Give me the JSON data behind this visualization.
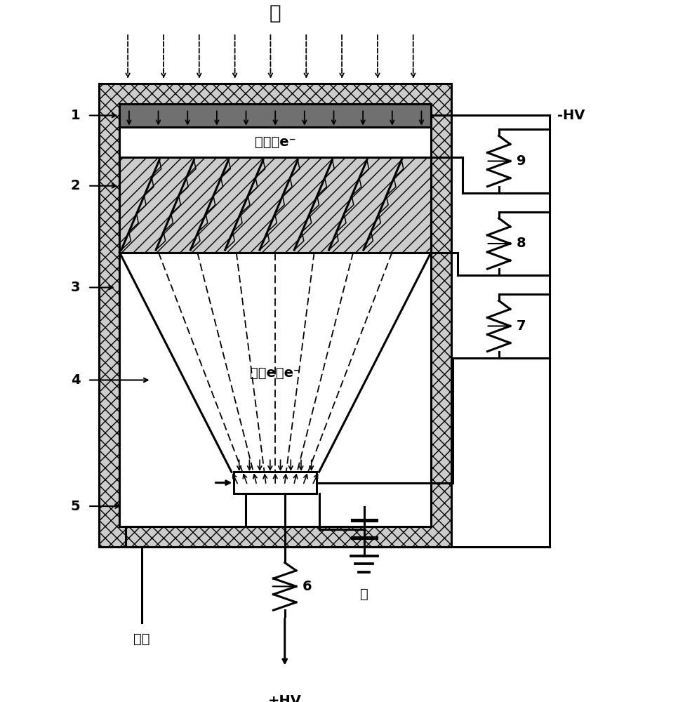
{
  "bg_color": "#ffffff",
  "photocathode_color": "#707070",
  "mcp_fill": "#cccccc",
  "outer_fill": "#cccccc",
  "figsize": [
    9.66,
    10.0
  ],
  "dpi": 100,
  "labels": {
    "guang": "光",
    "photoelectron": "光电子e⁻",
    "multiplied_electron": "倍增e子e⁻",
    "signal": "信号",
    "plus_hv": "+HV",
    "minus_hv": "-HV",
    "ground": "地",
    "num1": "1",
    "num2": "2",
    "num3": "3",
    "num4": "4",
    "num5": "5",
    "num6": "6",
    "num7": "7",
    "num8": "8",
    "num9": "9"
  }
}
